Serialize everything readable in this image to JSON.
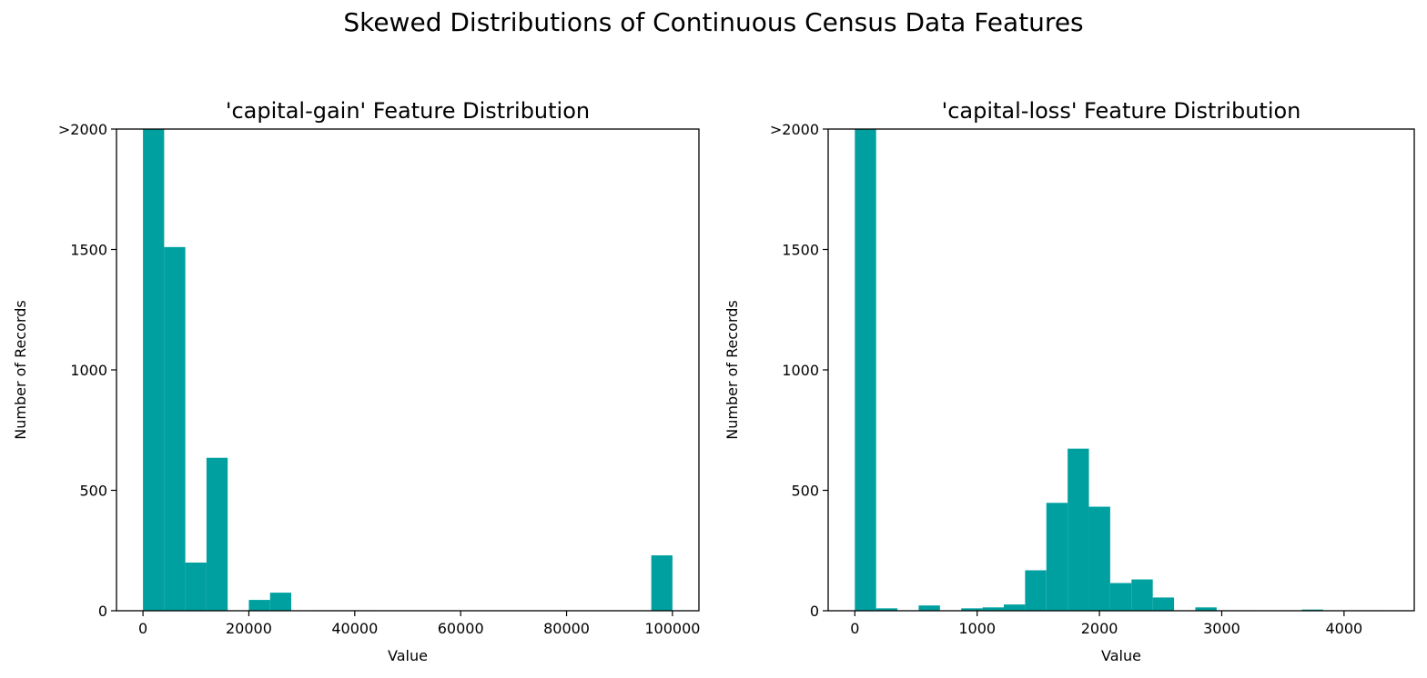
{
  "suptitle": "Skewed Distributions of Continuous Census Data Features",
  "chart_data": [
    {
      "type": "bar",
      "title": "'capital-gain' Feature Distribution",
      "xlabel": "Value",
      "ylabel": "Number of Records",
      "xlim": [
        -5000,
        105000
      ],
      "ylim": [
        0,
        2000
      ],
      "yticks": [
        0,
        500,
        1000,
        1500,
        2000
      ],
      "ytick_labels": [
        "0",
        "500",
        "1000",
        "1500",
        ">2000"
      ],
      "xticks": [
        0,
        20000,
        40000,
        60000,
        80000,
        100000
      ],
      "xtick_labels": [
        "0",
        "20000",
        "40000",
        "60000",
        "80000",
        "100000"
      ],
      "bar_color": "#00A0A0",
      "bins": [
        {
          "x0": 0,
          "x1": 4000,
          "value": 2000
        },
        {
          "x0": 4000,
          "x1": 8000,
          "value": 1510
        },
        {
          "x0": 8000,
          "x1": 12000,
          "value": 200
        },
        {
          "x0": 12000,
          "x1": 16000,
          "value": 635
        },
        {
          "x0": 16000,
          "x1": 20000,
          "value": 0
        },
        {
          "x0": 20000,
          "x1": 24000,
          "value": 45
        },
        {
          "x0": 24000,
          "x1": 28000,
          "value": 75
        },
        {
          "x0": 28000,
          "x1": 32000,
          "value": 0
        },
        {
          "x0": 32000,
          "x1": 36000,
          "value": 2
        },
        {
          "x0": 36000,
          "x1": 40000,
          "value": 2
        },
        {
          "x0": 40000,
          "x1": 44000,
          "value": 2
        },
        {
          "x0": 96000,
          "x1": 100000,
          "value": 230
        }
      ]
    },
    {
      "type": "bar",
      "title": "'capital-loss' Feature Distribution",
      "xlabel": "Value",
      "ylabel": "Number of Records",
      "xlim": [
        -218,
        4574
      ],
      "ylim": [
        0,
        2000
      ],
      "yticks": [
        0,
        500,
        1000,
        1500,
        2000
      ],
      "ytick_labels": [
        "0",
        "500",
        "1000",
        "1500",
        ">2000"
      ],
      "xticks": [
        0,
        1000,
        2000,
        3000,
        4000
      ],
      "xtick_labels": [
        "0",
        "1000",
        "2000",
        "3000",
        "4000"
      ],
      "bar_color": "#00A0A0",
      "bins": [
        {
          "x0": 0,
          "x1": 174,
          "value": 2000
        },
        {
          "x0": 174,
          "x1": 348,
          "value": 10
        },
        {
          "x0": 348,
          "x1": 522,
          "value": 0
        },
        {
          "x0": 522,
          "x1": 696,
          "value": 22
        },
        {
          "x0": 696,
          "x1": 870,
          "value": 0
        },
        {
          "x0": 870,
          "x1": 1044,
          "value": 10
        },
        {
          "x0": 1044,
          "x1": 1218,
          "value": 14
        },
        {
          "x0": 1218,
          "x1": 1392,
          "value": 26
        },
        {
          "x0": 1392,
          "x1": 1566,
          "value": 168
        },
        {
          "x0": 1566,
          "x1": 1740,
          "value": 448
        },
        {
          "x0": 1740,
          "x1": 1914,
          "value": 673
        },
        {
          "x0": 1914,
          "x1": 2088,
          "value": 432
        },
        {
          "x0": 2088,
          "x1": 2262,
          "value": 115
        },
        {
          "x0": 2262,
          "x1": 2436,
          "value": 130
        },
        {
          "x0": 2436,
          "x1": 2610,
          "value": 55
        },
        {
          "x0": 2610,
          "x1": 2784,
          "value": 0
        },
        {
          "x0": 2784,
          "x1": 2958,
          "value": 14
        },
        {
          "x0": 2958,
          "x1": 3132,
          "value": 2
        },
        {
          "x0": 3132,
          "x1": 3306,
          "value": 2
        },
        {
          "x0": 3480,
          "x1": 3654,
          "value": 2
        },
        {
          "x0": 3654,
          "x1": 3828,
          "value": 5
        },
        {
          "x0": 4002,
          "x1": 4176,
          "value": 2
        },
        {
          "x0": 4176,
          "x1": 4350,
          "value": 2
        }
      ]
    }
  ]
}
